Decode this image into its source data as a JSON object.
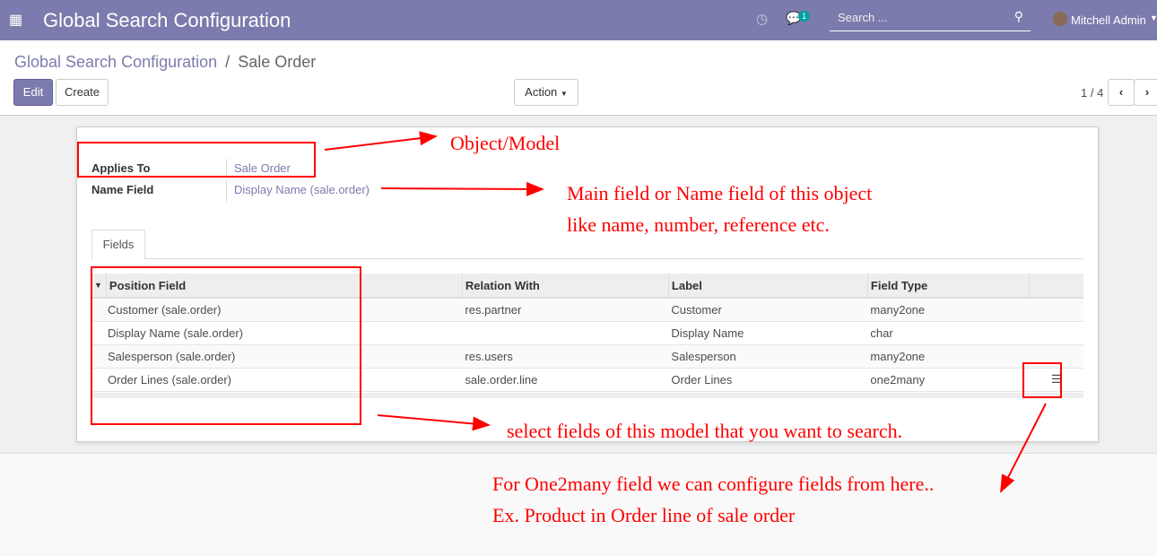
{
  "navbar": {
    "title": "Global Search Configuration",
    "search_placeholder": "Search ...",
    "chat_badge": "1",
    "user": "Mitchell Admin",
    "color": "#7c7bad"
  },
  "breadcrumb": {
    "parent": "Global Search Configuration",
    "sep": "/",
    "current": "Sale Order"
  },
  "toolbar": {
    "edit": "Edit",
    "create": "Create",
    "action": "Action",
    "pager": "1 / 4"
  },
  "form": {
    "applies_to_label": "Applies To",
    "applies_to_value": "Sale Order",
    "name_field_label": "Name Field",
    "name_field_value": "Display Name (sale.order)"
  },
  "tabs": [
    {
      "label": "Fields"
    }
  ],
  "table": {
    "headers": [
      "Position Field",
      "Relation With",
      "Label",
      "Field Type"
    ],
    "rows": [
      [
        "Customer (sale.order)",
        "res.partner",
        "Customer",
        "many2one"
      ],
      [
        "Display Name (sale.order)",
        "",
        "Display Name",
        "char"
      ],
      [
        "Salesperson (sale.order)",
        "res.users",
        "Salesperson",
        "many2one"
      ],
      [
        "Order Lines (sale.order)",
        "sale.order.line",
        "Order Lines",
        "one2many"
      ]
    ]
  },
  "annotations": {
    "a1": "Object/Model",
    "a2": "Main field or Name field of this object",
    "a3": "like name, number, reference etc.",
    "a4": "select fields of this model that you want to search.",
    "a5": "For One2many field we can configure fields from here..",
    "a6": "Ex. Product in Order line of sale order"
  }
}
